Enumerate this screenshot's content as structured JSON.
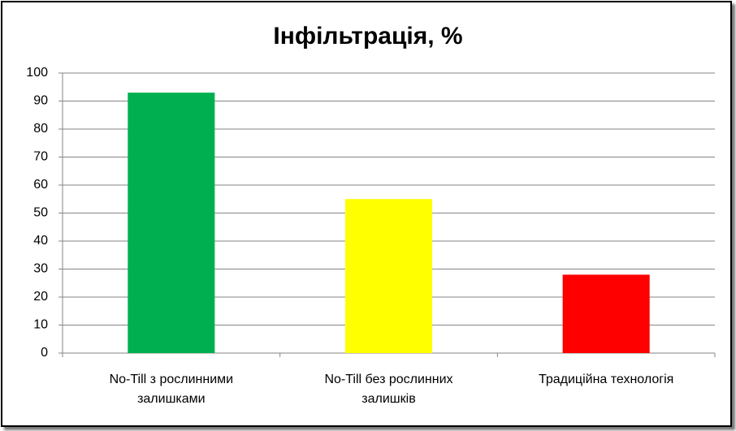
{
  "chart_data": {
    "type": "bar",
    "title": "Інфільтрація, %",
    "categories": [
      "No-Till з рослинними залишками",
      "No-Till без рослинних залишків",
      "Традиційна технологія"
    ],
    "values": [
      93,
      55,
      28
    ],
    "colors": [
      "#00b050",
      "#ffff00",
      "#ff0000"
    ],
    "ylim": [
      0,
      100
    ],
    "yticks": [
      0,
      10,
      20,
      30,
      40,
      50,
      60,
      70,
      80,
      90,
      100
    ],
    "grid": true
  }
}
